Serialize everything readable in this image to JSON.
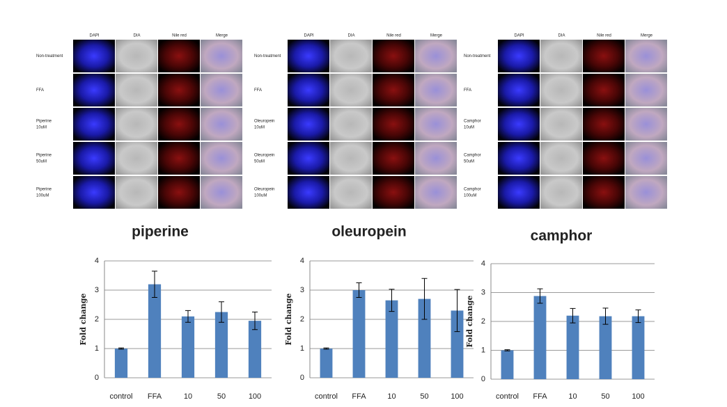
{
  "panels": [
    {
      "columns": [
        "DAPI",
        "DIA",
        "Nile red",
        "Merge"
      ],
      "rows": [
        [
          "Non-treatment"
        ],
        [
          "FFA"
        ],
        [
          "Piperine",
          "10uM"
        ],
        [
          "Piperine",
          "50uM"
        ],
        [
          "Piperine",
          "100uM"
        ]
      ]
    },
    {
      "columns": [
        "DAPI",
        "DIA",
        "Nile red",
        "Merge"
      ],
      "rows": [
        [
          "Non-treatment"
        ],
        [
          "FFA"
        ],
        [
          "Oleuropein",
          "10uM"
        ],
        [
          "Oleuropein",
          "50uM"
        ],
        [
          "Oleuropein",
          "100uM"
        ]
      ]
    },
    {
      "columns": [
        "DAPI",
        "DIA",
        "Nile red",
        "Merge"
      ],
      "rows": [
        [
          "Non-treatment"
        ],
        [
          "FFA"
        ],
        [
          "Camphor",
          "10uM"
        ],
        [
          "Camphor",
          "50uM"
        ],
        [
          "Camphor",
          "100uM"
        ]
      ]
    }
  ],
  "chart_data": [
    {
      "type": "bar",
      "title": "piperine",
      "y_label": "Fold change",
      "categories": [
        "control",
        "FFA",
        "10",
        "50",
        "100"
      ],
      "values": [
        1.0,
        3.2,
        2.1,
        2.25,
        1.95
      ],
      "errors": [
        0.02,
        0.45,
        0.2,
        0.35,
        0.3
      ],
      "color": "#4f81bd",
      "ylim": [
        0,
        4
      ],
      "yticks": [
        0,
        1,
        2,
        3,
        4
      ],
      "grid": true
    },
    {
      "type": "bar",
      "title": "oleuropein",
      "y_label": "Fold change",
      "categories": [
        "control",
        "FFA",
        "10",
        "50",
        "100"
      ],
      "values": [
        1.0,
        3.0,
        2.65,
        2.7,
        2.3
      ],
      "errors": [
        0.02,
        0.25,
        0.38,
        0.7,
        0.72
      ],
      "color": "#4f81bd",
      "ylim": [
        0,
        4
      ],
      "yticks": [
        0,
        1,
        2,
        3,
        4
      ],
      "grid": true
    },
    {
      "type": "bar",
      "title": "camphor",
      "y_label": "Fold change",
      "categories": [
        "control",
        "FFA",
        "10",
        "50",
        "100"
      ],
      "values": [
        1.0,
        2.88,
        2.2,
        2.18,
        2.18
      ],
      "errors": [
        0.02,
        0.25,
        0.25,
        0.28,
        0.22
      ],
      "color": "#4f81bd",
      "ylim": [
        0,
        4
      ],
      "yticks": [
        0,
        1,
        2,
        3,
        4
      ],
      "grid": true
    }
  ]
}
